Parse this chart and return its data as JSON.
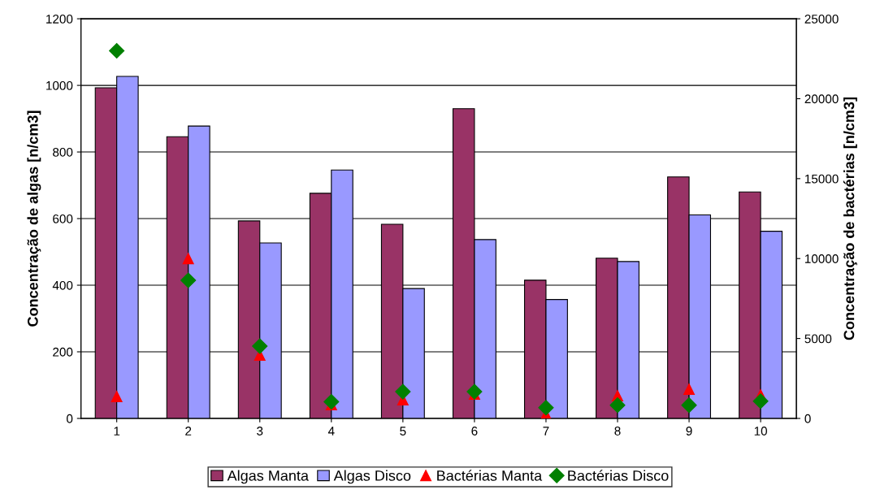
{
  "chart_data": {
    "type": "bar",
    "ylabel": "Concentração de algas [n/cm3]",
    "y2label": "Concentração de bactérias [n/cm3]",
    "categories": [
      "1",
      "2",
      "3",
      "4",
      "5",
      "6",
      "7",
      "8",
      "9",
      "10"
    ],
    "series": [
      {
        "name": "Algas Manta",
        "color": "#993366",
        "values": [
          993,
          846,
          593,
          676,
          583,
          930,
          415,
          481,
          725,
          680
        ]
      },
      {
        "name": "Algas Disco",
        "color": "#9999ff",
        "values": [
          1027,
          878,
          527,
          746,
          390,
          537,
          357,
          471,
          611,
          562
        ]
      },
      {
        "name": "Bactérias Manta",
        "type": "scatter",
        "axis": "y2",
        "marker": "triangle",
        "color": "#ff0000",
        "values": [
          1370,
          10000,
          3960,
          860,
          1170,
          1520,
          250,
          1420,
          1830,
          1470
        ]
      },
      {
        "name": "Bactérias Disco",
        "type": "scatter",
        "axis": "y2",
        "marker": "diamond",
        "color": "#008000",
        "values": [
          23000,
          8640,
          4520,
          1040,
          1670,
          1670,
          670,
          830,
          830,
          1080
        ]
      }
    ],
    "ylim": [
      0,
      1200
    ],
    "yticks": [
      0,
      200,
      400,
      600,
      800,
      1000,
      1200
    ],
    "y2lim": [
      0,
      25000
    ],
    "y2ticks": [
      0,
      5000,
      10000,
      15000,
      20000,
      25000
    ],
    "grid": "y",
    "legend": "bottom"
  }
}
